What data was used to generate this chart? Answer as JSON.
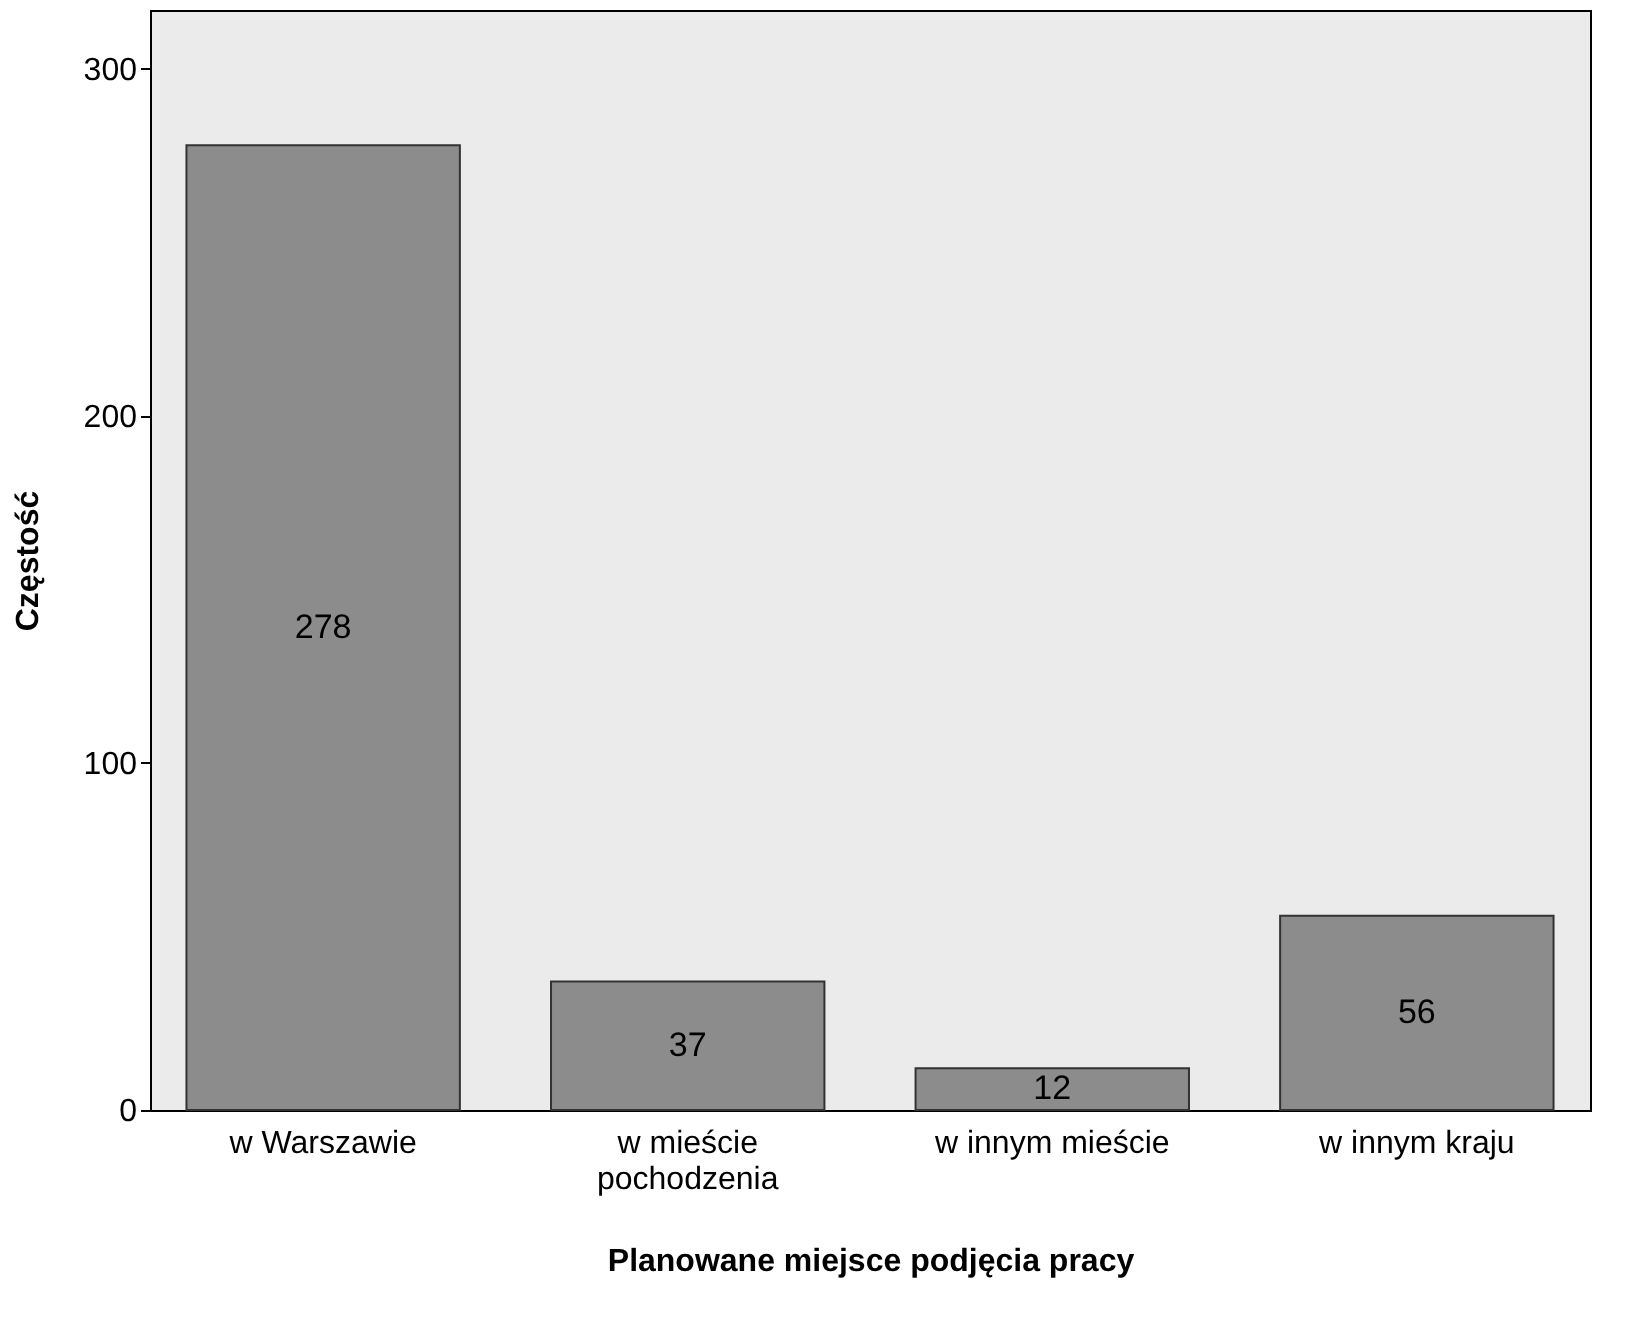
{
  "chart_data": {
    "type": "bar",
    "xlabel": "Planowane miejsce podjęcia pracy",
    "ylabel": "Częstość",
    "categories": [
      "w Warszawie",
      "w mieście pochodzenia",
      "w innym mieście",
      "w innym kraju"
    ],
    "values": [
      278,
      37,
      12,
      56
    ],
    "color": "#8c8c8c",
    "ylim": [
      0,
      317
    ],
    "yticks": [
      0,
      100,
      200,
      300
    ],
    "grid": false,
    "data_labels": true
  }
}
